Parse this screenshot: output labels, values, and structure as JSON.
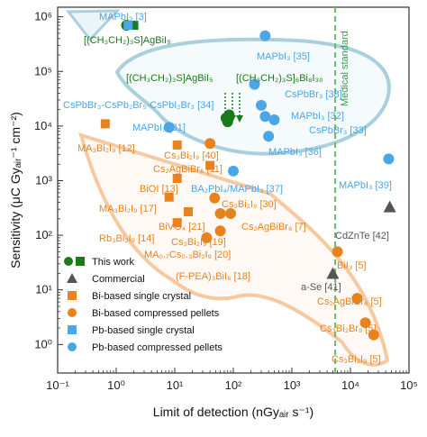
{
  "chart_data": {
    "type": "scatter",
    "xlabel": "Limit of detection (nGyₐᵢᵣ s⁻¹)",
    "ylabel": "Sensitivity (μC Gyₐᵢᵣ⁻¹ cm⁻²)",
    "xscale": "log",
    "yscale": "log",
    "xlim": [
      0.1,
      100000
    ],
    "ylim": [
      0.3,
      1500000
    ],
    "x_tick_labels": [
      "10⁻¹",
      "10⁰",
      "10¹",
      "10²",
      "10³",
      "10⁴",
      "10⁵"
    ],
    "y_tick_labels": [
      "10⁰",
      "10¹",
      "10²",
      "10³",
      "10⁴",
      "10⁵",
      "10⁶"
    ],
    "reference_line": {
      "x": 5500,
      "label": "Medical standard",
      "color": "#66bb6a"
    },
    "colors": {
      "this_work": "#1b7a1b",
      "commercial": "#555555",
      "bi": "#e8821e",
      "pb": "#4aa6e6"
    },
    "legend_placement": "bottom-left",
    "legend": [
      {
        "label": "This work",
        "marker": "circle-square",
        "group": "this_work"
      },
      {
        "label": "Commercial",
        "marker": "triangle",
        "group": "commercial"
      },
      {
        "label": "Bi-based single crystal",
        "marker": "square",
        "group": "bi"
      },
      {
        "label": "Bi-based compressed pellets",
        "marker": "circle",
        "group": "bi"
      },
      {
        "label": "Pb-based single crystal",
        "marker": "square",
        "group": "pb"
      },
      {
        "label": "Pb-based compressed pellets",
        "marker": "circle",
        "group": "pb"
      }
    ],
    "points": [
      {
        "x": 2.0,
        "y": 700000,
        "group": "this_work",
        "marker": "square"
      },
      {
        "x": 1.5,
        "y": 700000,
        "group": "this_work",
        "marker": "circle"
      },
      {
        "x": 75,
        "y": 14000,
        "group": "this_work",
        "marker": "circle"
      },
      {
        "x": 85,
        "y": 16000,
        "group": "this_work",
        "marker": "circle"
      },
      {
        "x": 80,
        "y": 12000,
        "group": "this_work",
        "marker": "circle"
      },
      {
        "x": 47000,
        "y": 330,
        "group": "commercial",
        "marker": "triangle"
      },
      {
        "x": 5000,
        "y": 20,
        "group": "commercial",
        "marker": "triangle"
      },
      {
        "x": 0.65,
        "y": 11000,
        "group": "bi",
        "marker": "square"
      },
      {
        "x": 11,
        "y": 4500,
        "group": "bi",
        "marker": "square"
      },
      {
        "x": 40,
        "y": 1900,
        "group": "bi",
        "marker": "square"
      },
      {
        "x": 11,
        "y": 1100,
        "group": "bi",
        "marker": "square"
      },
      {
        "x": 8,
        "y": 500,
        "group": "bi",
        "marker": "square"
      },
      {
        "x": 11,
        "y": 170,
        "group": "bi",
        "marker": "square"
      },
      {
        "x": 17,
        "y": 270,
        "group": "bi",
        "marker": "square"
      },
      {
        "x": 40,
        "y": 4800,
        "group": "bi",
        "marker": "circle"
      },
      {
        "x": 48,
        "y": 480,
        "group": "bi",
        "marker": "circle"
      },
      {
        "x": 60,
        "y": 250,
        "group": "bi",
        "marker": "circle"
      },
      {
        "x": 90,
        "y": 250,
        "group": "bi",
        "marker": "circle"
      },
      {
        "x": 60,
        "y": 120,
        "group": "bi",
        "marker": "circle"
      },
      {
        "x": 35,
        "y": 90,
        "group": "bi",
        "marker": "circle"
      },
      {
        "x": 6000,
        "y": 50,
        "group": "bi",
        "marker": "circle"
      },
      {
        "x": 13000,
        "y": 7,
        "group": "bi",
        "marker": "circle"
      },
      {
        "x": 18000,
        "y": 2.5,
        "group": "bi",
        "marker": "circle"
      },
      {
        "x": 25000,
        "y": 1.5,
        "group": "bi",
        "marker": "circle"
      },
      {
        "x": 1.6,
        "y": 700000,
        "group": "pb",
        "marker": "square"
      },
      {
        "x": 350,
        "y": 450000,
        "group": "pb",
        "marker": "circle"
      },
      {
        "x": 230,
        "y": 58000,
        "group": "pb",
        "marker": "circle"
      },
      {
        "x": 300,
        "y": 24000,
        "group": "pb",
        "marker": "circle"
      },
      {
        "x": 350,
        "y": 15000,
        "group": "pb",
        "marker": "circle"
      },
      {
        "x": 500,
        "y": 13000,
        "group": "pb",
        "marker": "circle"
      },
      {
        "x": 400,
        "y": 6500,
        "group": "pb",
        "marker": "circle"
      },
      {
        "x": 8,
        "y": 9500,
        "group": "pb",
        "marker": "circle"
      },
      {
        "x": 45000,
        "y": 2500,
        "group": "pb",
        "marker": "circle"
      },
      {
        "x": 100,
        "y": 1500,
        "group": "pb",
        "marker": "circle"
      }
    ],
    "annotations": [
      {
        "id": "a-mapbi3-3",
        "text": "MAPbI₃ [3]",
        "group": "pb"
      },
      {
        "id": "a-agbi-5",
        "text": "[(CH₃CH₂)₃S]AgBiI₅",
        "group": "this_work"
      },
      {
        "id": "a-agbi-5b",
        "text": "[(CH₃CH₂)₃S]AgBiI₅",
        "group": "this_work"
      },
      {
        "id": "a-s6bi8",
        "text": "[(CH₃CH₂)₃S]₆Bi₈I₃₀",
        "group": "this_work"
      },
      {
        "id": "a-mapbi3-35",
        "text": "MAPbI₃ [35]",
        "group": "pb"
      },
      {
        "id": "a-cspbbr3-38",
        "text": "CsPbBr₃ [38]",
        "group": "pb"
      },
      {
        "id": "a-cspbbr3-34",
        "text": "CsPbBr₃-CsPb₂Br₅-CsPbI₂Br₃ [34]",
        "group": "pb"
      },
      {
        "id": "a-mapbi3-32",
        "text": "MAPbI₃ [32]",
        "group": "pb"
      },
      {
        "id": "a-cspbbr3-33",
        "text": "CsPbBr₃ [33]",
        "group": "pb"
      },
      {
        "id": "a-mapbi3-31",
        "text": "MAPbI₃ [31]",
        "group": "pb"
      },
      {
        "id": "a-mapbi3-36",
        "text": "MAPbI₃ [36]",
        "group": "pb"
      },
      {
        "id": "a-ma3bi2i9-12",
        "text": "MA₃Bi₂I₉ [12]",
        "group": "bi"
      },
      {
        "id": "a-cs3bi2i9-40",
        "text": "Cs₃Bi₂I₉ [40]",
        "group": "bi"
      },
      {
        "id": "a-cs2agbibr6-11",
        "text": "Cs₂AgBiBr₆ [11]",
        "group": "bi"
      },
      {
        "id": "a-mapbi3-39",
        "text": "MAPbI₃ [39]",
        "group": "pb"
      },
      {
        "id": "a-bioi-13",
        "text": "BiOI [13]",
        "group": "bi"
      },
      {
        "id": "a-ba2pbi4-37",
        "text": "BA₂PbI₄/MAPbI₃ [37]",
        "group": "pb"
      },
      {
        "id": "a-ma3bi2i9-17",
        "text": "MA₃Bi₂I₉ [17]",
        "group": "bi"
      },
      {
        "id": "a-cs3bi2i9-30",
        "text": "Cs₃Bi₂I₉ [30]",
        "group": "bi"
      },
      {
        "id": "a-bivo4-21",
        "text": "BiVO₄ [21]",
        "group": "bi"
      },
      {
        "id": "a-cs2agbibr6-7",
        "text": "Cs₂AgBiBr₆ [7]",
        "group": "bi"
      },
      {
        "id": "a-rb3bi2i9-14",
        "text": "Rb₃Bi₂I₉ [14]",
        "group": "bi"
      },
      {
        "id": "a-cs3bi2i9-19",
        "text": "Cs₃Bi₂I₉ [19]",
        "group": "bi"
      },
      {
        "id": "a-mixed-20",
        "text": "MA₀.₇Cs₀.₃Bi₂I₉ [20]",
        "group": "bi"
      },
      {
        "id": "a-cdznte-42",
        "text": "CdZnTe [42]",
        "group": "commercial"
      },
      {
        "id": "a-fpea-18",
        "text": "(F-PEA)₃BiI₆ [18]",
        "group": "bi"
      },
      {
        "id": "a-bii3-5",
        "text": "BiI₃ [5]",
        "group": "bi"
      },
      {
        "id": "a-ase-41",
        "text": "a-Se [41]",
        "group": "commercial"
      },
      {
        "id": "a-cs2agbibr6-5",
        "text": "Cs₂AgBiBr₆ [5]",
        "group": "bi"
      },
      {
        "id": "a-cs3bi2br9-5",
        "text": "Cs₃Bi₂Br₉ [5]",
        "group": "bi"
      },
      {
        "id": "a-cs3bi2i9-5",
        "text": "Cs₃Bi₂I₉ [5]",
        "group": "bi"
      }
    ]
  }
}
